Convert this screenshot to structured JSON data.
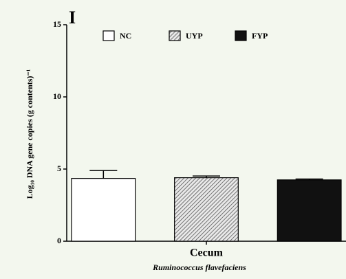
{
  "chart_data": {
    "type": "bar",
    "panel_label": "I",
    "ylabel": "Log₁₀ DNA gene copies (g contents)⁻¹",
    "categories": [
      "Cecum"
    ],
    "subtitle": "Ruminococcus flavefaciens",
    "series": [
      {
        "name": "NC",
        "color": "#ffffff",
        "values": [
          4.35
        ],
        "errors": [
          0.55
        ]
      },
      {
        "name": "UYP",
        "color": "#9a9a9a",
        "hatch": true,
        "values": [
          4.4
        ],
        "errors": [
          0.12
        ]
      },
      {
        "name": "FYP",
        "color": "#111111",
        "values": [
          4.25
        ],
        "errors": [
          0.06
        ]
      }
    ],
    "ylim": [
      0,
      15
    ],
    "yticks": [
      0,
      5,
      10,
      15
    ],
    "legend": "top"
  }
}
